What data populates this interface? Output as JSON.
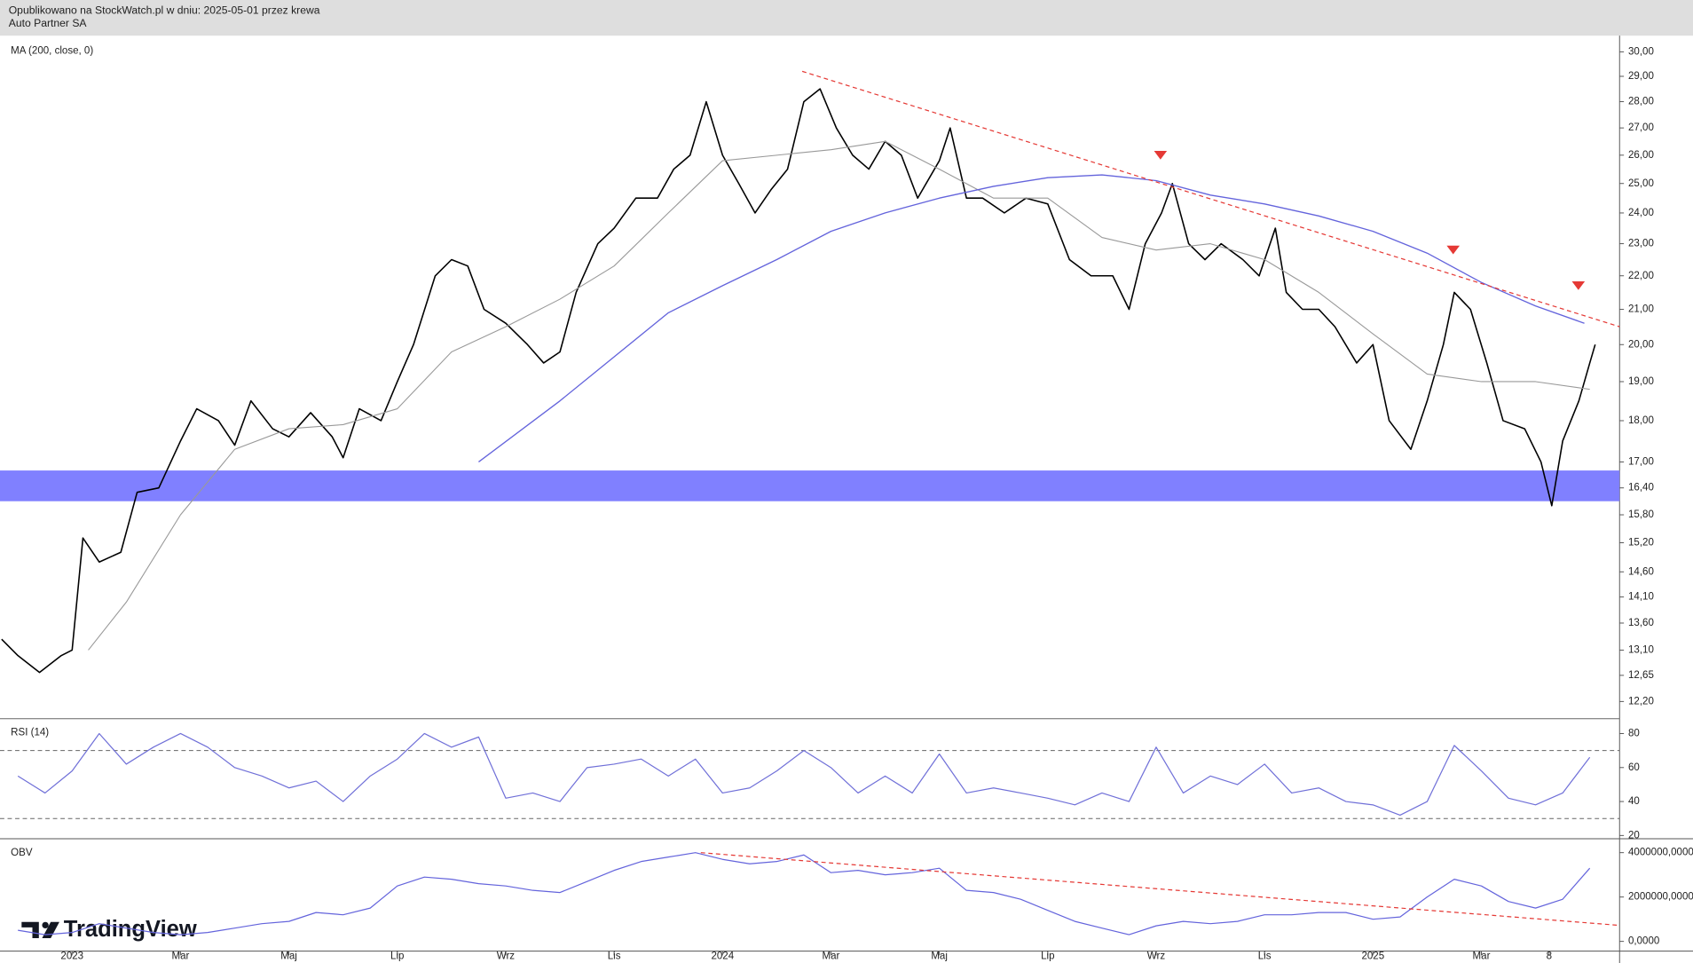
{
  "header": [
    "Opublikowano na StockWatch.pl w dniu: 2025-05-01 przez krewa",
    "Auto Partner SA"
  ],
  "watermark": "TradingView",
  "chart_data": [
    {
      "type": "line",
      "log": true,
      "xlim": [
        -1.33,
        28.55
      ],
      "xticks": [
        {
          "value": 0,
          "label": "2023"
        },
        {
          "value": 2,
          "label": "Mar"
        },
        {
          "value": 4,
          "label": "Maj"
        },
        {
          "value": 6,
          "label": "Lip"
        },
        {
          "value": 8,
          "label": "Wrz"
        },
        {
          "value": 10,
          "label": "Lis"
        },
        {
          "value": 12,
          "label": "2024"
        },
        {
          "value": 14,
          "label": "Mar"
        },
        {
          "value": 16,
          "label": "Maj"
        },
        {
          "value": 18,
          "label": "Lip"
        },
        {
          "value": 20,
          "label": "Wrz"
        },
        {
          "value": 22,
          "label": "Lis"
        },
        {
          "value": 24,
          "label": "2025"
        },
        {
          "value": 26,
          "label": "Mar"
        },
        {
          "value": 27.25,
          "label": "8"
        }
      ],
      "ylim": [
        11.93,
        30.68
      ],
      "yticks": [
        {
          "value": 30,
          "label": "30,00"
        },
        {
          "value": 29,
          "label": "29,00"
        },
        {
          "value": 28,
          "label": "28,00"
        },
        {
          "value": 27,
          "label": "27,00"
        },
        {
          "value": 26,
          "label": "26,00"
        },
        {
          "value": 25,
          "label": "25,00"
        },
        {
          "value": 24,
          "label": "24,00"
        },
        {
          "value": 23,
          "label": "23,00"
        },
        {
          "value": 22,
          "label": "22,00"
        },
        {
          "value": 21,
          "label": "21,00"
        },
        {
          "value": 20,
          "label": "20,00"
        },
        {
          "value": 19,
          "label": "19,00"
        },
        {
          "value": 18,
          "label": "18,00"
        },
        {
          "value": 17,
          "label": "17,00"
        },
        {
          "value": 16.4,
          "label": "16,40"
        },
        {
          "value": 15.8,
          "label": "15,80"
        },
        {
          "value": 15.2,
          "label": "15,20"
        },
        {
          "value": 14.6,
          "label": "14,60"
        },
        {
          "value": 14.1,
          "label": "14,10"
        },
        {
          "value": 13.6,
          "label": "13,60"
        },
        {
          "value": 13.1,
          "label": "13,10"
        },
        {
          "value": 12.65,
          "label": "12,65"
        },
        {
          "value": 12.2,
          "label": "12,20"
        }
      ],
      "zone": {
        "range": [
          16.1,
          16.8
        ],
        "color": "#8080ff"
      },
      "series": [
        {
          "color": "#000000",
          "width": 1.3,
          "x": [
            -1.3,
            -1.0,
            -0.6,
            -0.2,
            0.0,
            0.2,
            0.5,
            0.9,
            1.2,
            1.6,
            2.0,
            2.3,
            2.7,
            3.0,
            3.3,
            3.7,
            4.0,
            4.4,
            4.8,
            5.0,
            5.3,
            5.7,
            6.0,
            6.3,
            6.7,
            7.0,
            7.3,
            7.6,
            8.0,
            8.4,
            8.7,
            9.0,
            9.3,
            9.7,
            10.0,
            10.4,
            10.8,
            11.1,
            11.4,
            11.7,
            12.0,
            12.3,
            12.6,
            12.9,
            13.2,
            13.5,
            13.8,
            14.1,
            14.4,
            14.7,
            15.0,
            15.3,
            15.6,
            16.0,
            16.2,
            16.5,
            16.8,
            17.2,
            17.6,
            18.0,
            18.4,
            18.8,
            19.2,
            19.5,
            19.8,
            20.1,
            20.3,
            20.6,
            20.9,
            21.2,
            21.6,
            21.9,
            22.2,
            22.4,
            22.7,
            23.0,
            23.3,
            23.7,
            24.0,
            24.3,
            24.7,
            25.0,
            25.3,
            25.5,
            25.8,
            26.1,
            26.4,
            26.8,
            27.1,
            27.3,
            27.5,
            27.8,
            28.0,
            28.1
          ],
          "values": [
            13.3,
            13.0,
            12.7,
            13.0,
            13.1,
            15.3,
            14.8,
            15.0,
            16.3,
            16.4,
            17.5,
            18.3,
            18.0,
            17.4,
            18.5,
            17.8,
            17.6,
            18.2,
            17.6,
            17.1,
            18.3,
            18.0,
            19.0,
            20.0,
            22.0,
            22.5,
            22.3,
            21.0,
            20.6,
            20.0,
            19.5,
            19.8,
            21.5,
            23.0,
            23.5,
            24.5,
            24.5,
            25.5,
            26.0,
            28.0,
            26.0,
            25.0,
            24.0,
            24.8,
            25.5,
            28.0,
            28.5,
            27.0,
            26.0,
            25.5,
            26.5,
            26.0,
            24.5,
            25.8,
            27.0,
            24.5,
            24.5,
            24.0,
            24.5,
            24.3,
            22.5,
            22.0,
            22.0,
            21.0,
            23.0,
            24.0,
            25.0,
            23.0,
            22.5,
            23.0,
            22.5,
            22.0,
            23.5,
            21.5,
            21.0,
            21.0,
            20.5,
            19.5,
            20.0,
            18.0,
            17.3,
            18.5,
            20.0,
            21.5,
            21.0,
            19.5,
            18.0,
            17.8,
            17.0,
            16.0,
            17.5,
            18.5,
            19.5,
            20.0
          ]
        },
        {
          "color": "#999999",
          "width": 0.9,
          "x": [
            0.3,
            1,
            2,
            3,
            4,
            5,
            6,
            7,
            8,
            9,
            10,
            11,
            12,
            13,
            14,
            15,
            16,
            17,
            18,
            19,
            20,
            21,
            22,
            23,
            24,
            25,
            26,
            27,
            28
          ],
          "values": [
            13.1,
            14.0,
            15.8,
            17.3,
            17.8,
            17.9,
            18.3,
            19.8,
            20.5,
            21.3,
            22.3,
            24.0,
            25.8,
            26.0,
            26.2,
            26.5,
            25.5,
            24.5,
            24.5,
            23.2,
            22.8,
            23.0,
            22.5,
            21.5,
            20.3,
            19.2,
            19.0,
            19.0,
            18.8
          ]
        },
        {
          "name": "MA (200, close, 0)",
          "color": "#6464dc",
          "width": 1.1,
          "x": [
            7.5,
            9,
            11,
            12,
            13,
            14,
            15,
            16,
            17,
            18,
            19,
            20,
            21,
            22,
            23,
            24,
            25,
            26,
            27,
            27.9
          ],
          "values": [
            17.0,
            18.5,
            20.9,
            21.7,
            22.5,
            23.4,
            24.0,
            24.5,
            24.9,
            25.2,
            25.3,
            25.1,
            24.6,
            24.3,
            23.9,
            23.4,
            22.7,
            21.8,
            21.1,
            20.6
          ]
        }
      ],
      "trendlines": [
        {
          "x": [
            13.47,
            28.55
          ],
          "y": [
            29.2,
            20.5
          ],
          "color": "#e53935"
        }
      ],
      "markers": {
        "x": [
          20.08,
          25.48,
          27.79
        ],
        "y": [
          26.0,
          22.8,
          21.7
        ],
        "color": "#e53935"
      }
    },
    {
      "type": "line",
      "title": "RSI (14)",
      "ylim": [
        18.75,
        88.1
      ],
      "yticks": [
        80,
        60,
        40,
        20
      ],
      "hlines": [
        70,
        30
      ],
      "series": [
        {
          "color": "#7070d8",
          "width": 1,
          "x": [
            -1,
            -0.5,
            0,
            0.5,
            1,
            1.5,
            2,
            2.5,
            3,
            3.5,
            4,
            4.5,
            5,
            5.5,
            6,
            6.5,
            7,
            7.5,
            8,
            8.5,
            9,
            9.5,
            10,
            10.5,
            11,
            11.5,
            12,
            12.5,
            13,
            13.5,
            14,
            14.5,
            15,
            15.5,
            16,
            16.5,
            17,
            17.5,
            18,
            18.5,
            19,
            19.5,
            20,
            20.5,
            21,
            21.5,
            22,
            22.5,
            23,
            23.5,
            24,
            24.5,
            25,
            25.5,
            26,
            26.5,
            27,
            27.5,
            28
          ],
          "values": [
            55,
            45,
            58,
            80,
            62,
            72,
            80,
            72,
            60,
            55,
            48,
            52,
            40,
            55,
            65,
            80,
            72,
            78,
            42,
            45,
            40,
            60,
            62,
            65,
            55,
            65,
            45,
            48,
            58,
            70,
            60,
            45,
            55,
            45,
            68,
            45,
            48,
            45,
            42,
            38,
            45,
            40,
            72,
            45,
            55,
            50,
            62,
            45,
            48,
            40,
            38,
            32,
            40,
            73,
            58,
            42,
            38,
            45,
            66
          ]
        }
      ]
    },
    {
      "type": "line",
      "title": "OBV",
      "ylim": [
        -390000,
        4580000
      ],
      "yticks": [
        {
          "value": 4000000,
          "label": "4000000,0000"
        },
        {
          "value": 2000000,
          "label": "2000000,0000"
        },
        {
          "value": 0,
          "label": "0,0000"
        }
      ],
      "series": [
        {
          "color": "#6464dc",
          "width": 1,
          "x": [
            -1,
            -0.5,
            0,
            0.5,
            1,
            1.5,
            2,
            2.5,
            3,
            3.5,
            4,
            4.5,
            5,
            5.5,
            6,
            6.5,
            7,
            7.5,
            8,
            8.5,
            9,
            9.5,
            10,
            10.5,
            11,
            11.5,
            12,
            12.5,
            13,
            13.5,
            14,
            14.5,
            15,
            15.5,
            16,
            16.5,
            17,
            17.5,
            18,
            18.5,
            19,
            19.5,
            20,
            20.5,
            21,
            21.5,
            22,
            22.5,
            23,
            23.5,
            24,
            24.5,
            25,
            25.5,
            26,
            26.5,
            27,
            27.5,
            28
          ],
          "values": [
            500000,
            300000,
            400000,
            800000,
            600000,
            400000,
            300000,
            400000,
            600000,
            800000,
            900000,
            1300000,
            1200000,
            1500000,
            2500000,
            2900000,
            2800000,
            2600000,
            2500000,
            2300000,
            2200000,
            2700000,
            3200000,
            3600000,
            3800000,
            4000000,
            3700000,
            3500000,
            3600000,
            3900000,
            3100000,
            3200000,
            3000000,
            3100000,
            3300000,
            2300000,
            2200000,
            1900000,
            1400000,
            900000,
            600000,
            300000,
            700000,
            900000,
            800000,
            900000,
            1200000,
            1200000,
            1300000,
            1300000,
            1000000,
            1100000,
            2000000,
            2800000,
            2500000,
            1800000,
            1500000,
            1900000,
            3300000
          ]
        }
      ],
      "trendlines": [
        {
          "x": [
            11.6,
            28.55
          ],
          "y": [
            4000000,
            720000
          ],
          "color": "#e53935"
        }
      ]
    }
  ]
}
